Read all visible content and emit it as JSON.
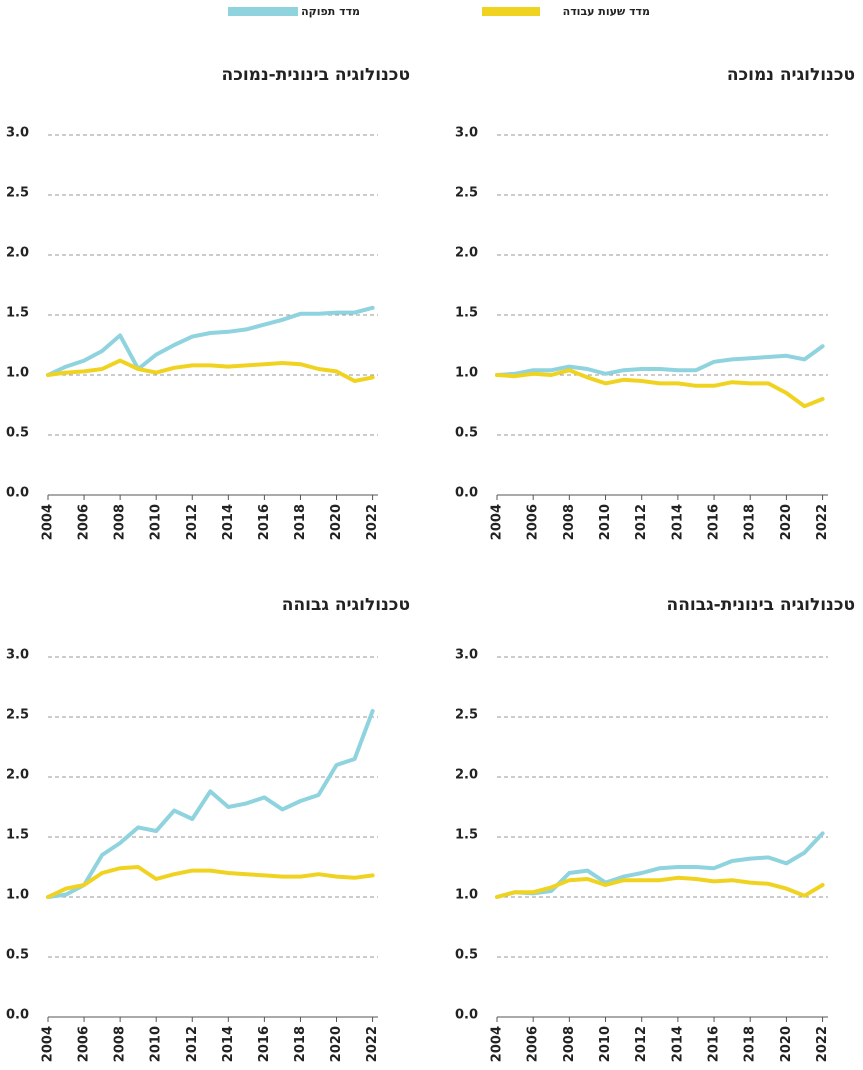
{
  "chart_data": [
    {
      "type": "line",
      "title": "טכנולוגיה נמוכה",
      "x": [
        2004,
        2005,
        2006,
        2007,
        2008,
        2009,
        2010,
        2011,
        2012,
        2013,
        2014,
        2015,
        2016,
        2017,
        2018,
        2019,
        2020,
        2021,
        2022
      ],
      "series": [
        {
          "name": "מדד תפוקה",
          "color": "#8fd3df",
          "values": [
            1.0,
            1.01,
            1.04,
            1.04,
            1.07,
            1.05,
            1.01,
            1.04,
            1.05,
            1.05,
            1.04,
            1.04,
            1.11,
            1.13,
            1.14,
            1.15,
            1.16,
            1.13,
            1.24
          ]
        },
        {
          "name": "מדד שעות עבודה",
          "color": "#f0d321",
          "values": [
            1.0,
            0.99,
            1.01,
            1.0,
            1.04,
            0.98,
            0.93,
            0.96,
            0.95,
            0.93,
            0.93,
            0.91,
            0.91,
            0.94,
            0.93,
            0.93,
            0.85,
            0.74,
            0.8
          ]
        }
      ],
      "xlim": [
        2004,
        2022.3
      ],
      "xticks": [
        2004,
        2006,
        2008,
        2010,
        2012,
        2014,
        2016,
        2018,
        2020,
        2022
      ],
      "ylim": [
        0,
        3
      ],
      "yticks": [
        {
          "value": 0,
          "label": "0.0"
        },
        0.5,
        {
          "value": 1,
          "label": "1.0"
        },
        1.5,
        {
          "value": 2,
          "label": "2.0"
        },
        2.5,
        {
          "value": 3,
          "label": "3.0"
        }
      ],
      "grid": true
    },
    {
      "type": "line",
      "title": "טכנולוגיה בינונית-נמוכה",
      "x": [
        2004,
        2005,
        2006,
        2007,
        2008,
        2009,
        2010,
        2011,
        2012,
        2013,
        2014,
        2015,
        2016,
        2017,
        2018,
        2019,
        2020,
        2021,
        2022
      ],
      "series": [
        {
          "name": "מדד תפוקה",
          "color": "#8fd3df",
          "values": [
            1.0,
            1.07,
            1.12,
            1.2,
            1.33,
            1.05,
            1.17,
            1.25,
            1.32,
            1.35,
            1.36,
            1.38,
            1.42,
            1.46,
            1.51,
            1.51,
            1.52,
            1.52,
            1.56
          ]
        },
        {
          "name": "מדד שעות עבודה",
          "color": "#f0d321",
          "values": [
            1.0,
            1.02,
            1.03,
            1.05,
            1.12,
            1.05,
            1.02,
            1.06,
            1.08,
            1.08,
            1.07,
            1.08,
            1.09,
            1.1,
            1.09,
            1.05,
            1.03,
            0.95,
            0.98
          ]
        }
      ],
      "xlim": [
        2004,
        2022.3
      ],
      "xticks": [
        2004,
        2006,
        2008,
        2010,
        2012,
        2014,
        2016,
        2018,
        2020,
        2022
      ],
      "ylim": [
        0,
        3
      ],
      "yticks": [
        {
          "value": 0,
          "label": "0.0"
        },
        0.5,
        {
          "value": 1,
          "label": "1.0"
        },
        1.5,
        {
          "value": 2,
          "label": "2.0"
        },
        2.5,
        {
          "value": 3,
          "label": "3.0"
        }
      ],
      "grid": true
    },
    {
      "type": "line",
      "title": "טכנולוגיה בינונית-גבוהה",
      "x": [
        2004,
        2005,
        2006,
        2007,
        2008,
        2009,
        2010,
        2011,
        2012,
        2013,
        2014,
        2015,
        2016,
        2017,
        2018,
        2019,
        2020,
        2021,
        2022
      ],
      "series": [
        {
          "name": "מדד תפוקה",
          "color": "#8fd3df",
          "values": [
            1.0,
            1.04,
            1.03,
            1.05,
            1.2,
            1.22,
            1.12,
            1.17,
            1.2,
            1.24,
            1.25,
            1.25,
            1.24,
            1.3,
            1.32,
            1.33,
            1.28,
            1.37,
            1.53
          ]
        },
        {
          "name": "מדד שעות עבודה",
          "color": "#f0d321",
          "values": [
            1.0,
            1.04,
            1.04,
            1.08,
            1.14,
            1.15,
            1.1,
            1.14,
            1.14,
            1.14,
            1.16,
            1.15,
            1.13,
            1.14,
            1.12,
            1.11,
            1.07,
            1.01,
            1.1
          ]
        }
      ],
      "xlim": [
        2004,
        2022.3
      ],
      "xticks": [
        2004,
        2006,
        2008,
        2010,
        2012,
        2014,
        2016,
        2018,
        2020,
        2022
      ],
      "ylim": [
        0,
        3
      ],
      "yticks": [
        {
          "value": 0,
          "label": "0.0"
        },
        0.5,
        {
          "value": 1,
          "label": "1.0"
        },
        1.5,
        {
          "value": 2,
          "label": "2.0"
        },
        2.5,
        {
          "value": 3,
          "label": "3.0"
        }
      ],
      "grid": true
    },
    {
      "type": "line",
      "title": "טכנולוגיה גבוהה",
      "x": [
        2004,
        2005,
        2006,
        2007,
        2008,
        2009,
        2010,
        2011,
        2012,
        2013,
        2014,
        2015,
        2016,
        2017,
        2018,
        2019,
        2020,
        2021,
        2022
      ],
      "series": [
        {
          "name": "מדד תפוקה",
          "color": "#8fd3df",
          "values": [
            1.0,
            1.02,
            1.1,
            1.35,
            1.45,
            1.58,
            1.55,
            1.72,
            1.65,
            1.88,
            1.75,
            1.78,
            1.83,
            1.73,
            1.8,
            1.85,
            2.1,
            2.15,
            2.55
          ]
        },
        {
          "name": "מדד שעות עבודה",
          "color": "#f0d321",
          "values": [
            1.0,
            1.07,
            1.1,
            1.2,
            1.24,
            1.25,
            1.15,
            1.19,
            1.22,
            1.22,
            1.2,
            1.19,
            1.18,
            1.17,
            1.17,
            1.19,
            1.17,
            1.16,
            1.18
          ]
        }
      ],
      "xlim": [
        2004,
        2022.3
      ],
      "xticks": [
        2004,
        2006,
        2008,
        2010,
        2012,
        2014,
        2016,
        2018,
        2020,
        2022
      ],
      "ylim": [
        0,
        3
      ],
      "yticks": [
        {
          "value": 0,
          "label": "0.0"
        },
        0.5,
        {
          "value": 1,
          "label": "1.0"
        },
        1.5,
        {
          "value": 2,
          "label": "2.0"
        },
        2.5,
        {
          "value": 3,
          "label": "3.0"
        }
      ],
      "grid": true
    }
  ]
}
